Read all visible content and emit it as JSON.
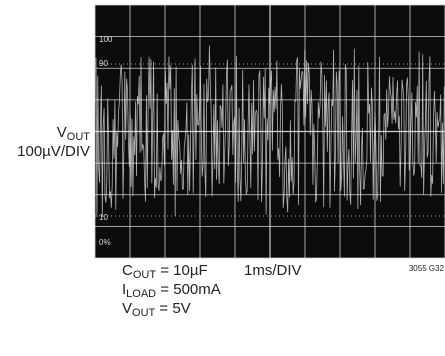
{
  "screen": {
    "labels": [
      "100",
      "90",
      "10",
      "0%"
    ]
  },
  "y_label": {
    "main": "V",
    "sub": "OUT",
    "scale": "100µV/DIV"
  },
  "notes": [
    {
      "main": "C",
      "sub": "OUT",
      "rest": " = 10µF"
    },
    {
      "main": "I",
      "sub": "LOAD",
      "rest": " = 500mA"
    },
    {
      "main": "V",
      "sub": "OUT",
      "rest": " = 5V"
    }
  ],
  "time_scale": "1ms/DIV",
  "figure_id": "3055 G32"
}
